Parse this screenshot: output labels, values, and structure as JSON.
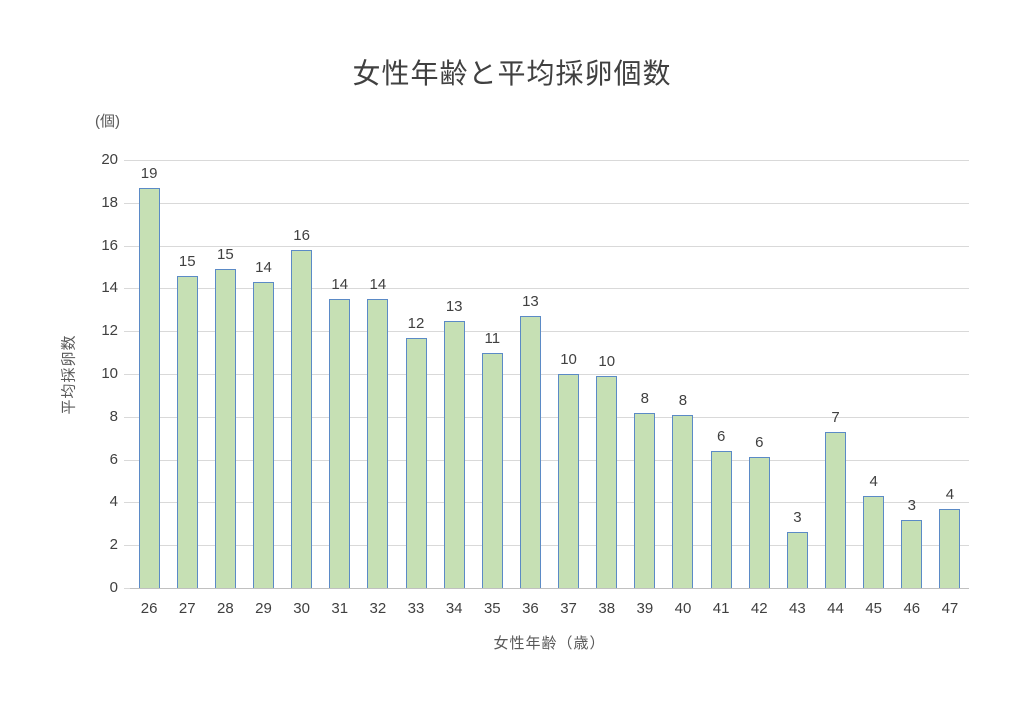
{
  "chart_data": {
    "type": "bar",
    "title": "女性年齢と平均採卵個数",
    "xlabel": "女性年齢（歳）",
    "ylabel": "平均採卵数",
    "y_unit_label": "(個)",
    "categories": [
      "26",
      "27",
      "28",
      "29",
      "30",
      "31",
      "32",
      "33",
      "34",
      "35",
      "36",
      "37",
      "38",
      "39",
      "40",
      "41",
      "42",
      "43",
      "44",
      "45",
      "46",
      "47"
    ],
    "values": [
      18.7,
      14.6,
      14.9,
      14.3,
      15.8,
      13.5,
      13.5,
      11.7,
      12.5,
      11.0,
      12.7,
      10.0,
      9.9,
      8.2,
      8.1,
      6.4,
      6.1,
      2.6,
      7.3,
      4.3,
      3.2,
      3.7
    ],
    "data_labels": [
      "19",
      "15",
      "15",
      "14",
      "16",
      "14",
      "14",
      "12",
      "13",
      "11",
      "13",
      "10",
      "10",
      "8",
      "8",
      "6",
      "6",
      "3",
      "7",
      "4",
      "3",
      "4"
    ],
    "ylim": [
      0,
      20
    ],
    "yticks": [
      "0",
      "2",
      "4",
      "6",
      "8",
      "10",
      "12",
      "14",
      "16",
      "18",
      "20"
    ],
    "grid": "on",
    "legend": "none",
    "colors": {
      "bar_fill": "#c6e0b4",
      "bar_border": "#5b8ac6",
      "gridline": "#d9d9d9",
      "axis_line": "#c0c0c0",
      "tick_text": "#404040",
      "axis_title_text": "#595959",
      "title_text": "#404040"
    }
  }
}
